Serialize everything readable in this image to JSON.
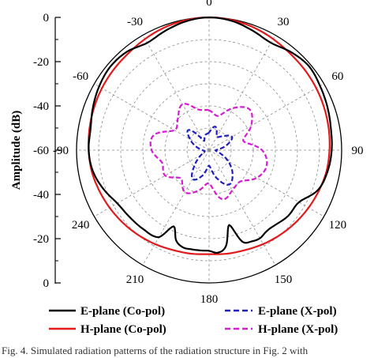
{
  "chart_data": {
    "type": "polar",
    "ylabel": "Amplitude (dB)",
    "radial_range": [
      -60,
      0
    ],
    "radial_ticks": [
      0,
      -20,
      -40,
      -60
    ],
    "angle_labels": [
      "0",
      "-30",
      "-60",
      "-90",
      "240",
      "210",
      "180",
      "150",
      "120",
      "90",
      "60",
      "30"
    ],
    "angle_label_positions_deg": [
      0,
      30,
      60,
      90,
      120,
      150,
      180,
      210,
      240,
      270,
      300,
      330
    ],
    "grid": true,
    "legend_position": "bottom",
    "series": [
      {
        "name": "E-plane (Co-pol)",
        "color": "#000000",
        "style": "solid",
        "angles": [
          0,
          10,
          20,
          30,
          40,
          50,
          60,
          70,
          80,
          90,
          100,
          110,
          120,
          130,
          140,
          150,
          155,
          160,
          165,
          170,
          175,
          180,
          185,
          190,
          195,
          200,
          205,
          210,
          215,
          220,
          230,
          240,
          250,
          260,
          270,
          280,
          290,
          300,
          310,
          320,
          330,
          340,
          350,
          360
        ],
        "values": [
          0,
          -0.8,
          -2.5,
          -4,
          -2,
          -1.5,
          -2.5,
          -4,
          -5.5,
          -5.5,
          -6.5,
          -9,
          -12,
          -13,
          -13.5,
          -14.5,
          -22,
          -16.5,
          -14.5,
          -14.5,
          -14.5,
          -14.5,
          -13.5,
          -16,
          -25,
          -16,
          -14.5,
          -14,
          -15,
          -15,
          -13.5,
          -13,
          -7.5,
          -5.5,
          -4.5,
          -4,
          -3,
          -2,
          -1,
          -2.2,
          -4,
          -2.5,
          -0.7,
          0
        ]
      },
      {
        "name": "H-plane (Co-pol)",
        "color": "#e31a1c",
        "style": "solid",
        "angles": [
          0,
          10,
          20,
          30,
          40,
          50,
          60,
          70,
          80,
          90,
          100,
          110,
          120,
          130,
          140,
          150,
          160,
          170,
          180,
          190,
          200,
          210,
          220,
          230,
          240,
          250,
          260,
          270,
          280,
          290,
          300,
          310,
          320,
          330,
          340,
          350,
          360
        ],
        "values": [
          0,
          -0.3,
          -1,
          -2,
          -3,
          -3.5,
          -4,
          -4.5,
          -5,
          -5.5,
          -6,
          -7,
          -8,
          -9,
          -10,
          -11,
          -12,
          -12.5,
          -13,
          -12.5,
          -12,
          -11,
          -10,
          -9,
          -8,
          -7,
          -6,
          -5.5,
          -5,
          -4.5,
          -4,
          -3.5,
          -3,
          -2,
          -1,
          -0.3,
          0
        ]
      },
      {
        "name": "E-plane (X-pol)",
        "color": "#1f1fbf",
        "style": "dashed",
        "angles": [
          0,
          15,
          30,
          45,
          60,
          75,
          90,
          105,
          120,
          135,
          150,
          165,
          180,
          195,
          210,
          225,
          240,
          255,
          270,
          285,
          300,
          315,
          330,
          345,
          360
        ],
        "values": [
          -52,
          -53,
          -55,
          -47,
          -50,
          -54,
          -57,
          -58,
          -56,
          -51,
          -45,
          -48,
          -53,
          -47,
          -42,
          -45,
          -50,
          -55,
          -57,
          -52,
          -48,
          -51,
          -53,
          -49,
          -52
        ]
      },
      {
        "name": "H-plane (X-pol)",
        "color": "#d61ad6",
        "style": "dashed",
        "angles": [
          0,
          15,
          30,
          45,
          60,
          75,
          90,
          105,
          120,
          135,
          150,
          165,
          180,
          195,
          210,
          225,
          240,
          255,
          270,
          285,
          300,
          315,
          330,
          345,
          360
        ],
        "values": [
          -42,
          -41,
          -36,
          -40,
          -42,
          -34,
          -34,
          -38,
          -37,
          -42,
          -38,
          -41,
          -45,
          -37,
          -39,
          -40,
          -35,
          -33,
          -36,
          -44,
          -38,
          -34,
          -38,
          -44,
          -42
        ]
      }
    ]
  },
  "caption": "Fig. 4.   Simulated radiation patterns of the radiation structure in Fig. 2 with"
}
